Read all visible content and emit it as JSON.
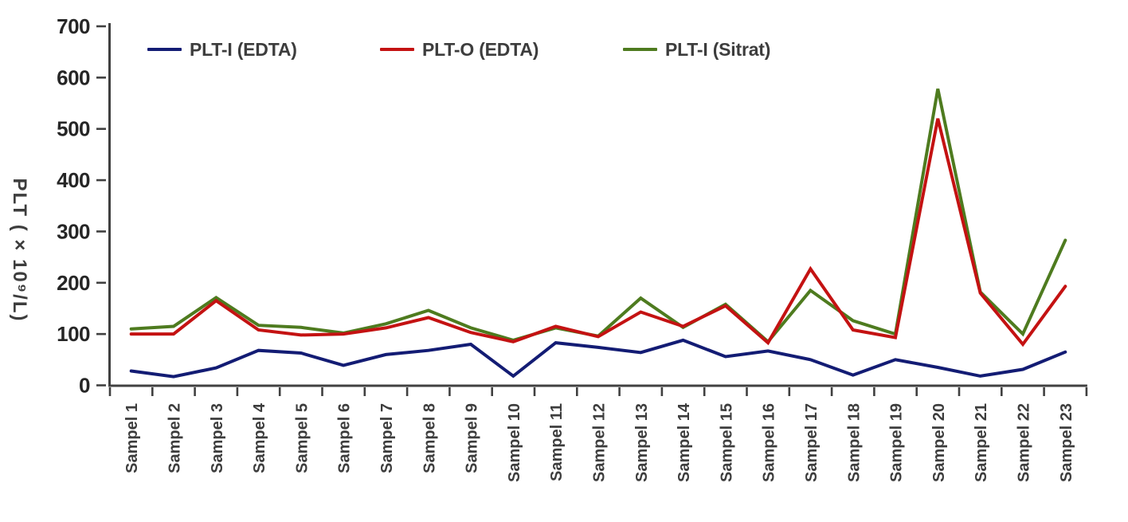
{
  "chart_data": {
    "type": "line",
    "title": "",
    "xlabel": "",
    "ylabel": "PLT ( × 10⁹/L)",
    "grid": false,
    "legend_position": "top-inside",
    "y_axis": {
      "min": 0,
      "max": 700,
      "step": 100,
      "tick_labels": [
        "0",
        "100",
        "200",
        "300",
        "400",
        "500",
        "600",
        "700"
      ]
    },
    "categories": [
      "Sampel 1",
      "Sampel 2",
      "Sampel 3",
      "Sampel 4",
      "Sampel 5",
      "Sampel 6",
      "Sampel 7",
      "Sampel 8",
      "Sampel 9",
      "Sampel 10",
      "Sampel 11",
      "Sampel 12",
      "Sampel 13",
      "Sampel 14",
      "Sampel 15",
      "Sampel 16",
      "Sampel 17",
      "Sampel 18",
      "Sampel 19",
      "Sampel 20",
      "Sampel 21",
      "Sampel 22",
      "Sampel 23"
    ],
    "series": [
      {
        "name": "PLT-I (EDTA)",
        "color": "#131c74",
        "values": [
          28,
          17,
          34,
          68,
          63,
          39,
          60,
          68,
          80,
          18,
          83,
          74,
          64,
          88,
          56,
          67,
          50,
          20,
          50,
          35,
          18,
          31,
          65
        ]
      },
      {
        "name": "PLT-O (EDTA)",
        "color": "#c41212",
        "values": [
          100,
          100,
          165,
          108,
          98,
          100,
          112,
          132,
          103,
          85,
          115,
          95,
          143,
          115,
          155,
          83,
          227,
          108,
          93,
          520,
          180,
          80,
          193
        ]
      },
      {
        "name": "PLT-I (Sitrat)",
        "color": "#4e7b1f",
        "values": [
          110,
          115,
          171,
          117,
          113,
          102,
          120,
          146,
          112,
          88,
          112,
          96,
          170,
          113,
          158,
          85,
          185,
          126,
          100,
          578,
          182,
          100,
          283
        ]
      }
    ]
  },
  "style": {
    "axis_color": "#404040",
    "y_tick_label_color": "#262626",
    "x_tick_label_color": "#3d3d3d",
    "background": "#ffffff"
  }
}
